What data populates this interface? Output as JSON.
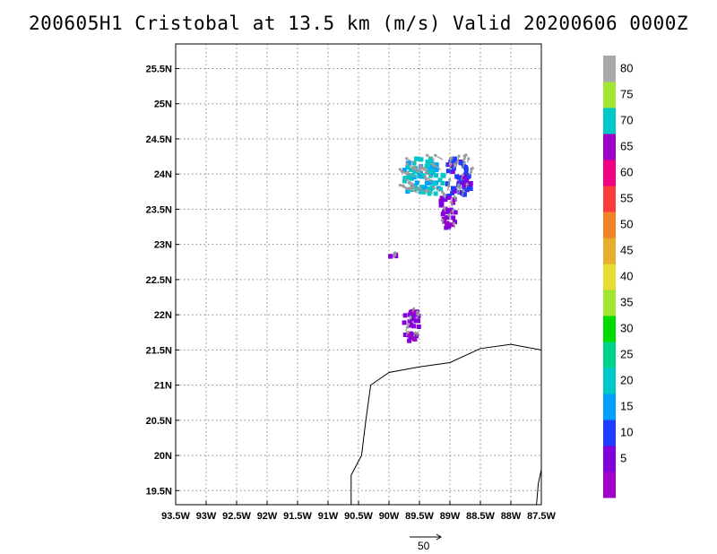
{
  "chart_data": {
    "type": "wind-vector-map",
    "title": "200605H1 Cristobal at 13.5 km (m/s) Valid 20200606 0000Z",
    "xlim": [
      -93.5,
      -87.5
    ],
    "ylim": [
      19.3,
      25.85
    ],
    "x_ticks": [
      {
        "value": -93.5,
        "label": "93.5W"
      },
      {
        "value": -93.0,
        "label": "93W"
      },
      {
        "value": -92.5,
        "label": "92.5W"
      },
      {
        "value": -92.0,
        "label": "92W"
      },
      {
        "value": -91.5,
        "label": "91.5W"
      },
      {
        "value": -91.0,
        "label": "91W"
      },
      {
        "value": -90.5,
        "label": "90.5W"
      },
      {
        "value": -90.0,
        "label": "90W"
      },
      {
        "value": -89.5,
        "label": "89.5W"
      },
      {
        "value": -89.0,
        "label": "89W"
      },
      {
        "value": -88.5,
        "label": "88.5W"
      },
      {
        "value": -88.0,
        "label": "88W"
      },
      {
        "value": -87.5,
        "label": "87.5W"
      }
    ],
    "y_ticks": [
      {
        "value": 19.5,
        "label": "19.5N"
      },
      {
        "value": 20.0,
        "label": "20N"
      },
      {
        "value": 20.5,
        "label": "20.5N"
      },
      {
        "value": 21.0,
        "label": "21N"
      },
      {
        "value": 21.5,
        "label": "21.5N"
      },
      {
        "value": 22.0,
        "label": "22N"
      },
      {
        "value": 22.5,
        "label": "22.5N"
      },
      {
        "value": 23.0,
        "label": "23N"
      },
      {
        "value": 23.5,
        "label": "23.5N"
      },
      {
        "value": 24.0,
        "label": "24N"
      },
      {
        "value": 24.5,
        "label": "24.5N"
      },
      {
        "value": 25.0,
        "label": "25N"
      },
      {
        "value": 25.5,
        "label": "25.5N"
      }
    ],
    "grid": true,
    "colorbar": {
      "colors": [
        "#a000c8",
        "#8200dc",
        "#1e3cff",
        "#00a0ff",
        "#00c8c8",
        "#00d28c",
        "#00dc00",
        "#a0e632",
        "#e6dc32",
        "#e6af2d",
        "#f08228",
        "#fa3c3c",
        "#f00082",
        "#9b00c8",
        "#00c8c8",
        "#a0e632",
        "#aaaaaa"
      ],
      "labels": [
        {
          "label": "5",
          "at": 1.5
        },
        {
          "label": "10",
          "at": 2.5
        },
        {
          "label": "15",
          "at": 3.5
        },
        {
          "label": "20",
          "at": 4.5
        },
        {
          "label": "25",
          "at": 5.5
        },
        {
          "label": "30",
          "at": 6.5
        },
        {
          "label": "35",
          "at": 7.5
        },
        {
          "label": "40",
          "at": 8.5
        },
        {
          "label": "45",
          "at": 9.5
        },
        {
          "label": "50",
          "at": 10.5
        },
        {
          "label": "55",
          "at": 11.5
        },
        {
          "label": "60",
          "at": 12.5
        },
        {
          "label": "65",
          "at": 13.5
        },
        {
          "label": "70",
          "at": 14.5
        },
        {
          "label": "75",
          "at": 15.5
        },
        {
          "label": "80",
          "at": 16.5
        }
      ]
    },
    "reference_vector": {
      "speed": 50,
      "label": "50"
    },
    "coastline": [
      [
        -90.62,
        19.3
      ],
      [
        -90.62,
        19.72
      ],
      [
        -90.45,
        20.0
      ],
      [
        -90.38,
        20.5
      ],
      [
        -90.3,
        21.0
      ],
      [
        -90.0,
        21.18
      ],
      [
        -89.5,
        21.26
      ],
      [
        -89.0,
        21.32
      ],
      [
        -88.5,
        21.52
      ],
      [
        -88.0,
        21.58
      ],
      [
        -87.5,
        21.5
      ]
    ],
    "coastline_east": [
      [
        -87.5,
        19.8
      ],
      [
        -87.55,
        19.6
      ],
      [
        -87.58,
        19.3
      ]
    ],
    "wind_clusters": [
      {
        "name": "north-cyan-band",
        "lon": [
          -89.75,
          -89.1
        ],
        "lat": [
          23.72,
          24.22
        ],
        "speeds": [
          20,
          22,
          18,
          15,
          24,
          21
        ],
        "direction_deg": 300
      },
      {
        "name": "north-blue-band",
        "lon": [
          -89.05,
          -88.65
        ],
        "lat": [
          23.68,
          24.22
        ],
        "speeds": [
          12,
          8,
          14,
          10,
          6,
          11
        ],
        "direction_deg": 15
      },
      {
        "name": "central-purple-cluster",
        "lon": [
          -89.15,
          -88.9
        ],
        "lat": [
          23.22,
          23.68
        ],
        "speeds": [
          5,
          7,
          4,
          8,
          6
        ],
        "direction_deg": 350
      },
      {
        "name": "isolated-purple-patch",
        "lon": [
          -90.0,
          -89.88
        ],
        "lat": [
          22.76,
          22.88
        ],
        "speeds": [
          6,
          5
        ],
        "direction_deg": 10
      },
      {
        "name": "south-purple-cluster",
        "lon": [
          -89.75,
          -89.5
        ],
        "lat": [
          21.62,
          22.05
        ],
        "speeds": [
          4,
          6,
          5,
          7
        ],
        "direction_deg": 20
      }
    ]
  }
}
